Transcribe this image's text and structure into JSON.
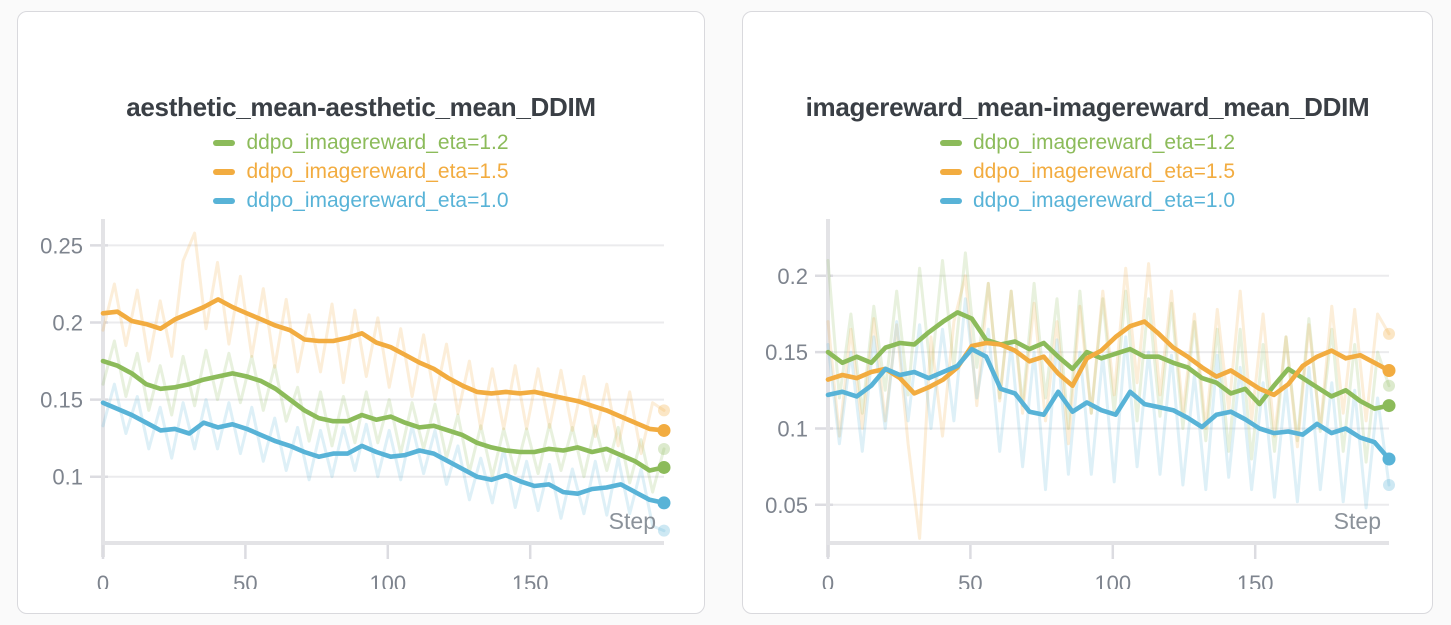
{
  "colors": {
    "green": "#8cbb5a",
    "orange": "#f2ac40",
    "blue": "#58b3d7"
  },
  "style": {
    "title_color": "#3a3f45",
    "tick_label_color": "#7e848e",
    "step_label_color": "#8b929a",
    "gridline_color": "#ebebed",
    "axis_bar_color": "#e3e3e6",
    "tick_mark_color": "#dcdce1",
    "card_border": "#d9d9dd",
    "card_bg": "#ffffff",
    "page_bg": "#fafafa"
  },
  "chart_data": [
    {
      "type": "line",
      "title": "aesthetic_mean-aesthetic_mean_DDIM",
      "xlabel": "Step",
      "legend_position": "top",
      "grid": true,
      "xlim": [
        0,
        197
      ],
      "xticks": [
        0,
        50,
        100,
        150
      ],
      "xtick_labels": [
        "0",
        "50",
        "100",
        "150"
      ],
      "ylim": [
        0.057,
        0.26
      ],
      "yticks": [
        0.25,
        0.2,
        0.15,
        0.1
      ],
      "ytick_labels": [
        "0.25",
        "0.2",
        "0.15",
        "0.1"
      ],
      "series": [
        {
          "name": "ddpo_imagereward_eta=1.2",
          "color": "green",
          "values": [
            0.175,
            0.172,
            0.167,
            0.16,
            0.157,
            0.158,
            0.16,
            0.163,
            0.165,
            0.167,
            0.165,
            0.162,
            0.157,
            0.15,
            0.143,
            0.138,
            0.136,
            0.136,
            0.14,
            0.137,
            0.139,
            0.135,
            0.132,
            0.133,
            0.13,
            0.127,
            0.122,
            0.119,
            0.117,
            0.116,
            0.116,
            0.118,
            0.117,
            0.119,
            0.116,
            0.118,
            0.114,
            0.11,
            0.104,
            0.106
          ],
          "raw_values": [
            0.16,
            0.188,
            0.152,
            0.18,
            0.143,
            0.172,
            0.14,
            0.178,
            0.146,
            0.182,
            0.15,
            0.18,
            0.148,
            0.178,
            0.143,
            0.172,
            0.136,
            0.158,
            0.123,
            0.155,
            0.12,
            0.152,
            0.122,
            0.155,
            0.122,
            0.15,
            0.115,
            0.148,
            0.118,
            0.147,
            0.112,
            0.14,
            0.103,
            0.133,
            0.1,
            0.131,
            0.102,
            0.131,
            0.102,
            0.134,
            0.104,
            0.132,
            0.1,
            0.133,
            0.104,
            0.132,
            0.096,
            0.124,
            0.09,
            0.118
          ]
        },
        {
          "name": "ddpo_imagereward_eta=1.5",
          "color": "orange",
          "values": [
            0.206,
            0.207,
            0.201,
            0.199,
            0.196,
            0.202,
            0.206,
            0.21,
            0.215,
            0.21,
            0.206,
            0.202,
            0.198,
            0.195,
            0.189,
            0.188,
            0.188,
            0.19,
            0.193,
            0.187,
            0.184,
            0.179,
            0.174,
            0.17,
            0.164,
            0.159,
            0.155,
            0.154,
            0.155,
            0.154,
            0.155,
            0.153,
            0.151,
            0.149,
            0.146,
            0.143,
            0.139,
            0.135,
            0.131,
            0.13
          ],
          "raw_values": [
            0.195,
            0.225,
            0.185,
            0.221,
            0.175,
            0.214,
            0.178,
            0.24,
            0.258,
            0.196,
            0.239,
            0.186,
            0.23,
            0.178,
            0.222,
            0.171,
            0.215,
            0.168,
            0.205,
            0.168,
            0.212,
            0.161,
            0.208,
            0.165,
            0.203,
            0.158,
            0.196,
            0.152,
            0.192,
            0.15,
            0.186,
            0.141,
            0.175,
            0.131,
            0.17,
            0.131,
            0.172,
            0.131,
            0.17,
            0.132,
            0.169,
            0.13,
            0.165,
            0.126,
            0.16,
            0.12,
            0.155,
            0.115,
            0.148,
            0.143
          ]
        },
        {
          "name": "ddpo_imagereward_eta=1.0",
          "color": "blue",
          "values": [
            0.148,
            0.144,
            0.14,
            0.135,
            0.13,
            0.131,
            0.128,
            0.135,
            0.132,
            0.134,
            0.131,
            0.127,
            0.123,
            0.12,
            0.116,
            0.113,
            0.115,
            0.115,
            0.12,
            0.116,
            0.113,
            0.114,
            0.117,
            0.115,
            0.11,
            0.105,
            0.1,
            0.098,
            0.101,
            0.097,
            0.094,
            0.095,
            0.09,
            0.089,
            0.092,
            0.093,
            0.095,
            0.09,
            0.085,
            0.083
          ],
          "raw_values": [
            0.133,
            0.16,
            0.128,
            0.152,
            0.118,
            0.145,
            0.112,
            0.148,
            0.118,
            0.15,
            0.118,
            0.148,
            0.115,
            0.145,
            0.11,
            0.138,
            0.104,
            0.132,
            0.098,
            0.13,
            0.1,
            0.132,
            0.104,
            0.134,
            0.1,
            0.13,
            0.098,
            0.133,
            0.102,
            0.13,
            0.095,
            0.12,
            0.085,
            0.112,
            0.083,
            0.118,
            0.08,
            0.11,
            0.078,
            0.108,
            0.073,
            0.105,
            0.076,
            0.11,
            0.075,
            0.112,
            0.076,
            0.105,
            0.068,
            0.065
          ]
        }
      ]
    },
    {
      "type": "line",
      "title": "imagereward_mean-imagereward_mean_DDIM",
      "xlabel": "Step",
      "legend_position": "top",
      "grid": true,
      "xlim": [
        0,
        197
      ],
      "xticks": [
        0,
        50,
        100,
        150
      ],
      "xtick_labels": [
        "0",
        "50",
        "100",
        "150"
      ],
      "ylim": [
        0.025,
        0.23
      ],
      "yticks": [
        0.2,
        0.15,
        0.1,
        0.05
      ],
      "ytick_labels": [
        "0.2",
        "0.15",
        "0.1",
        "0.05"
      ],
      "series": [
        {
          "name": "ddpo_imagereward_eta=1.2",
          "color": "green",
          "values": [
            0.15,
            0.143,
            0.147,
            0.143,
            0.153,
            0.156,
            0.155,
            0.163,
            0.17,
            0.176,
            0.172,
            0.158,
            0.155,
            0.157,
            0.152,
            0.156,
            0.147,
            0.139,
            0.15,
            0.146,
            0.149,
            0.152,
            0.147,
            0.147,
            0.143,
            0.14,
            0.133,
            0.13,
            0.123,
            0.126,
            0.116,
            0.128,
            0.139,
            0.133,
            0.127,
            0.121,
            0.125,
            0.118,
            0.113,
            0.115
          ],
          "raw_values": [
            0.21,
            0.12,
            0.175,
            0.11,
            0.18,
            0.125,
            0.19,
            0.122,
            0.205,
            0.135,
            0.21,
            0.14,
            0.215,
            0.14,
            0.195,
            0.12,
            0.19,
            0.115,
            0.195,
            0.12,
            0.185,
            0.1,
            0.19,
            0.11,
            0.185,
            0.11,
            0.19,
            0.105,
            0.185,
            0.108,
            0.182,
            0.1,
            0.17,
            0.092,
            0.165,
            0.085,
            0.165,
            0.08,
            0.155,
            0.085,
            0.16,
            0.092,
            0.172,
            0.098,
            0.165,
            0.085,
            0.155,
            0.078,
            0.15,
            0.128
          ]
        },
        {
          "name": "ddpo_imagereward_eta=1.5",
          "color": "orange",
          "values": [
            0.132,
            0.135,
            0.133,
            0.137,
            0.139,
            0.133,
            0.123,
            0.127,
            0.132,
            0.14,
            0.154,
            0.156,
            0.155,
            0.151,
            0.144,
            0.147,
            0.136,
            0.128,
            0.146,
            0.151,
            0.16,
            0.167,
            0.17,
            0.162,
            0.153,
            0.147,
            0.14,
            0.134,
            0.138,
            0.132,
            0.126,
            0.122,
            0.129,
            0.141,
            0.147,
            0.151,
            0.146,
            0.148,
            0.143,
            0.138
          ],
          "raw_values": [
            0.17,
            0.095,
            0.165,
            0.1,
            0.172,
            0.105,
            0.168,
            0.09,
            0.028,
            0.16,
            0.095,
            0.17,
            0.2,
            0.115,
            0.195,
            0.118,
            0.19,
            0.11,
            0.182,
            0.105,
            0.17,
            0.09,
            0.18,
            0.11,
            0.19,
            0.122,
            0.205,
            0.13,
            0.208,
            0.122,
            0.19,
            0.11,
            0.175,
            0.1,
            0.178,
            0.112,
            0.19,
            0.105,
            0.175,
            0.095,
            0.16,
            0.088,
            0.168,
            0.1,
            0.18,
            0.11,
            0.178,
            0.105,
            0.175,
            0.162
          ]
        },
        {
          "name": "ddpo_imagereward_eta=1.0",
          "color": "blue",
          "values": [
            0.122,
            0.124,
            0.121,
            0.128,
            0.139,
            0.135,
            0.137,
            0.133,
            0.137,
            0.141,
            0.152,
            0.147,
            0.126,
            0.123,
            0.111,
            0.109,
            0.124,
            0.111,
            0.117,
            0.112,
            0.109,
            0.124,
            0.116,
            0.114,
            0.112,
            0.107,
            0.101,
            0.109,
            0.111,
            0.106,
            0.1,
            0.097,
            0.098,
            0.096,
            0.103,
            0.097,
            0.1,
            0.094,
            0.091,
            0.08
          ],
          "raw_values": [
            0.155,
            0.09,
            0.15,
            0.085,
            0.16,
            0.1,
            0.17,
            0.105,
            0.168,
            0.1,
            0.165,
            0.105,
            0.185,
            0.12,
            0.165,
            0.085,
            0.155,
            0.075,
            0.15,
            0.06,
            0.158,
            0.07,
            0.15,
            0.07,
            0.148,
            0.065,
            0.16,
            0.075,
            0.15,
            0.07,
            0.148,
            0.063,
            0.135,
            0.06,
            0.148,
            0.068,
            0.14,
            0.06,
            0.13,
            0.055,
            0.128,
            0.052,
            0.14,
            0.06,
            0.13,
            0.052,
            0.125,
            0.048,
            0.12,
            0.063
          ]
        }
      ]
    }
  ]
}
